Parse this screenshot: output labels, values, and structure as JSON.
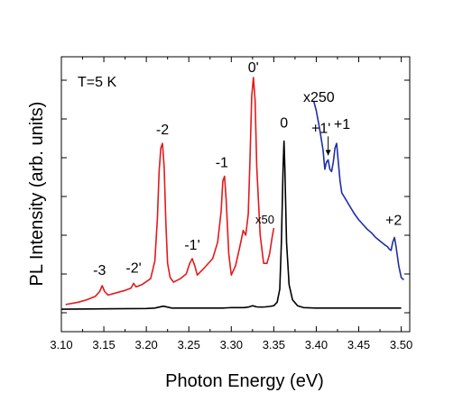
{
  "chart_data": {
    "type": "line",
    "title": "",
    "xlabel": "Photon Energy (eV)",
    "ylabel": "PL Intensity (arb. units)",
    "xlim": [
      3.1,
      3.51
    ],
    "ylim": [
      0,
      1
    ],
    "x_ticks": [
      "3.10",
      "3.15",
      "3.20",
      "3.25",
      "3.30",
      "3.35",
      "3.40",
      "3.45",
      "3.50"
    ],
    "y_tick_labels": "none",
    "grid": false,
    "legend": "none",
    "series": [
      {
        "color": "#000000",
        "x": [
          3.1,
          3.2,
          3.21,
          3.22,
          3.23,
          3.29,
          3.3,
          3.315,
          3.32,
          3.325,
          3.33,
          3.335,
          3.34,
          3.345,
          3.35,
          3.354,
          3.357,
          3.359,
          3.361,
          3.362,
          3.363,
          3.365,
          3.368,
          3.372,
          3.378,
          3.385,
          3.4,
          3.45,
          3.5
        ],
        "y": [
          0.015,
          0.018,
          0.02,
          0.028,
          0.02,
          0.02,
          0.022,
          0.022,
          0.024,
          0.03,
          0.025,
          0.024,
          0.025,
          0.027,
          0.03,
          0.045,
          0.1,
          0.3,
          0.62,
          0.73,
          0.62,
          0.3,
          0.12,
          0.055,
          0.03,
          0.022,
          0.02,
          0.02,
          0.02
        ]
      },
      {
        "color": "#e31a1c",
        "x": [
          3.105,
          3.12,
          3.13,
          3.14,
          3.145,
          3.148,
          3.151,
          3.155,
          3.165,
          3.175,
          3.182,
          3.185,
          3.188,
          3.195,
          3.205,
          3.21,
          3.213,
          3.215,
          3.217,
          3.219,
          3.221,
          3.223,
          3.225,
          3.228,
          3.232,
          3.24,
          3.247,
          3.251,
          3.254,
          3.257,
          3.26,
          3.268,
          3.278,
          3.284,
          3.288,
          3.29,
          3.292,
          3.294,
          3.297,
          3.3,
          3.305,
          3.31,
          3.314,
          3.317,
          3.32,
          3.322,
          3.324,
          3.326,
          3.328,
          3.33,
          3.334,
          3.338,
          3.342,
          3.345,
          3.348,
          3.35
        ],
        "y": [
          0.035,
          0.045,
          0.055,
          0.07,
          0.09,
          0.115,
          0.09,
          0.075,
          0.085,
          0.095,
          0.105,
          0.125,
          0.11,
          0.12,
          0.145,
          0.22,
          0.4,
          0.6,
          0.7,
          0.72,
          0.62,
          0.38,
          0.21,
          0.15,
          0.13,
          0.145,
          0.165,
          0.21,
          0.23,
          0.2,
          0.16,
          0.19,
          0.23,
          0.3,
          0.43,
          0.56,
          0.58,
          0.48,
          0.25,
          0.16,
          0.2,
          0.28,
          0.35,
          0.33,
          0.42,
          0.65,
          0.92,
          1.0,
          0.9,
          0.62,
          0.33,
          0.21,
          0.21,
          0.25,
          0.32,
          0.36
        ]
      },
      {
        "color": "#1f2ea8",
        "x": [
          3.397,
          3.4,
          3.403,
          3.405,
          3.408,
          3.41,
          3.412,
          3.414,
          3.416,
          3.418,
          3.42,
          3.422,
          3.424,
          3.426,
          3.428,
          3.43,
          3.435,
          3.44,
          3.445,
          3.45,
          3.455,
          3.46,
          3.465,
          3.47,
          3.475,
          3.48,
          3.484,
          3.486,
          3.488,
          3.49,
          3.492,
          3.494,
          3.497,
          3.5,
          3.503
        ],
        "y": [
          0.9,
          0.86,
          0.8,
          0.76,
          0.69,
          0.61,
          0.64,
          0.65,
          0.61,
          0.6,
          0.64,
          0.7,
          0.72,
          0.64,
          0.56,
          0.51,
          0.48,
          0.45,
          0.42,
          0.395,
          0.375,
          0.355,
          0.34,
          0.32,
          0.305,
          0.29,
          0.28,
          0.27,
          0.265,
          0.3,
          0.32,
          0.28,
          0.2,
          0.15,
          0.14
        ]
      }
    ],
    "annotations": {
      "temperature": "T=5 K",
      "peaks": [
        {
          "label": "-3",
          "x": 3.147,
          "y": 0.115
        },
        {
          "label": "-2'",
          "x": 3.185,
          "y": 0.125
        },
        {
          "label": "-2",
          "x": 3.219,
          "y": 0.72
        },
        {
          "label": "-1'",
          "x": 3.254,
          "y": 0.23
        },
        {
          "label": "-1",
          "x": 3.291,
          "y": 0.58
        },
        {
          "label": "0'",
          "x": 3.326,
          "y": 1.0
        },
        {
          "label": "0",
          "x": 3.362,
          "y": 0.73
        },
        {
          "label": "+1'",
          "x": 3.414,
          "y": 0.65
        },
        {
          "label": "+1",
          "x": 3.424,
          "y": 0.72
        },
        {
          "label": "+2",
          "x": 3.491,
          "y": 0.32
        }
      ],
      "scale_red": "x50",
      "scale_blue": "x250"
    }
  }
}
